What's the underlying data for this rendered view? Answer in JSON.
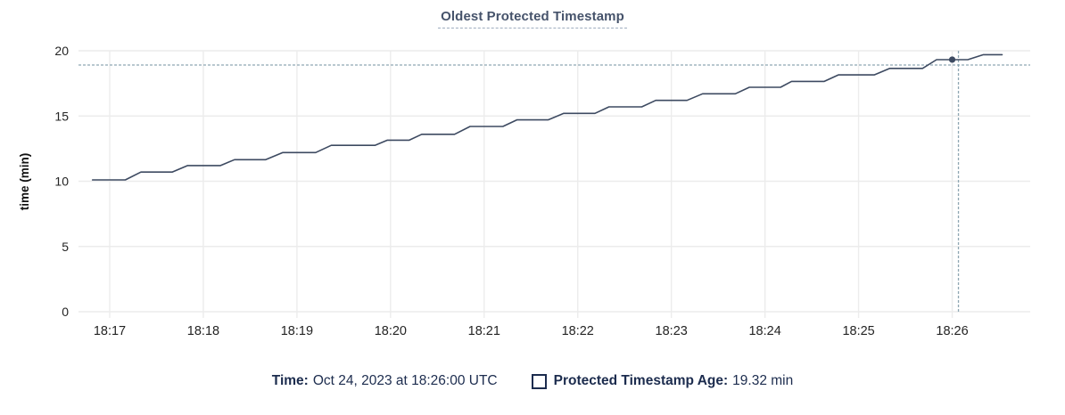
{
  "title": {
    "text": "Oldest Protected Timestamp"
  },
  "legend": {
    "time_label": "Time:",
    "time_value": "Oct 24, 2023 at 18:26:00 UTC",
    "series_label": "Protected Timestamp Age:",
    "series_value": "19.32 min"
  },
  "chart_data": {
    "type": "line",
    "title": "Oldest Protected Timestamp",
    "xlabel": "",
    "ylabel": "time (min)",
    "ylim": [
      0,
      20
    ],
    "y_ticks": [
      0,
      5,
      10,
      15,
      20
    ],
    "grid": true,
    "legend_position": "bottom",
    "x_domain_seconds_after_1816": [
      40,
      650
    ],
    "x_ticks": [
      {
        "t": 60,
        "label": "18:17"
      },
      {
        "t": 120,
        "label": "18:18"
      },
      {
        "t": 180,
        "label": "18:19"
      },
      {
        "t": 240,
        "label": "18:20"
      },
      {
        "t": 300,
        "label": "18:21"
      },
      {
        "t": 360,
        "label": "18:22"
      },
      {
        "t": 420,
        "label": "18:23"
      },
      {
        "t": 480,
        "label": "18:24"
      },
      {
        "t": 540,
        "label": "18:25"
      },
      {
        "t": 600,
        "label": "18:26"
      }
    ],
    "series": [
      {
        "name": "Protected Timestamp Age",
        "unit": "min",
        "points_t_seconds_value_min": [
          [
            49,
            10.1
          ],
          [
            70,
            10.1
          ],
          [
            80,
            10.7
          ],
          [
            100,
            10.7
          ],
          [
            110,
            11.2
          ],
          [
            131,
            11.2
          ],
          [
            140,
            11.65
          ],
          [
            160,
            11.65
          ],
          [
            171,
            12.2
          ],
          [
            192,
            12.2
          ],
          [
            202,
            12.75
          ],
          [
            230,
            12.75
          ],
          [
            238,
            13.15
          ],
          [
            252,
            13.15
          ],
          [
            260,
            13.6
          ],
          [
            281,
            13.6
          ],
          [
            291,
            14.2
          ],
          [
            312,
            14.2
          ],
          [
            321,
            14.7
          ],
          [
            341,
            14.7
          ],
          [
            351,
            15.2
          ],
          [
            371,
            15.2
          ],
          [
            380,
            15.7
          ],
          [
            401,
            15.7
          ],
          [
            410,
            16.2
          ],
          [
            430,
            16.2
          ],
          [
            440,
            16.7
          ],
          [
            461,
            16.7
          ],
          [
            470,
            17.2
          ],
          [
            490,
            17.2
          ],
          [
            497,
            17.65
          ],
          [
            518,
            17.65
          ],
          [
            527,
            18.15
          ],
          [
            550,
            18.15
          ],
          [
            560,
            18.65
          ],
          [
            581,
            18.65
          ],
          [
            590,
            19.32
          ],
          [
            610,
            19.32
          ],
          [
            620,
            19.7
          ],
          [
            632,
            19.7
          ]
        ]
      }
    ],
    "hover": {
      "dot": {
        "t": 600,
        "value": 19.32
      },
      "crosshair": {
        "t": 604,
        "value": 18.91
      }
    }
  },
  "colors": {
    "title": "#46536b",
    "title_underline": "#9fadbf",
    "legend_text": "#1c2c4e",
    "axis_text": "#242424",
    "grid": "#ececec",
    "line": "#3d4a61",
    "crosshair": "#8fa7b3",
    "background": "#ffffff"
  }
}
